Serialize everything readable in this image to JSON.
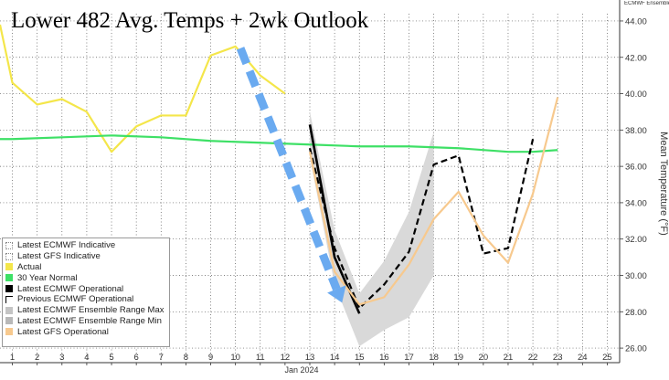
{
  "chart_data": {
    "type": "line",
    "title": "Lower 482 Avg. Temps + 2wk Outlook",
    "ylabel": "Mean Temperature (°F)",
    "xlabel_sub": "Jan 2024",
    "top_right_cut_label": "ECMWF Ensemble Range",
    "x_ticks": [
      "1",
      "2",
      "3",
      "4",
      "5",
      "6",
      "7",
      "8",
      "9",
      "10",
      "11",
      "12",
      "13",
      "14",
      "15",
      "16",
      "17",
      "18",
      "19",
      "20",
      "21",
      "22",
      "23",
      "24",
      "25"
    ],
    "y_ticks": [
      "26.00",
      "28.00",
      "30.00",
      "32.00",
      "34.00",
      "36.00",
      "38.00",
      "40.00",
      "42.00",
      "44.00"
    ],
    "xlim": [
      0.5,
      25.5
    ],
    "ylim": [
      25.2,
      44.4
    ],
    "grid": true,
    "legend_position": "bottom-left",
    "legend": [
      {
        "label": "Latest ECMWF Indicative",
        "style": "dotted",
        "color": "#ffffff"
      },
      {
        "label": "Latest GFS Indicative",
        "style": "dotted",
        "color": "#ffffff"
      },
      {
        "label": "Actual",
        "style": "solid",
        "color": "#f4e64a"
      },
      {
        "label": "30 Year Normal",
        "style": "solid",
        "color": "#3ee066"
      },
      {
        "label": "Latest ECMWF Operational",
        "style": "solid",
        "color": "#000000"
      },
      {
        "label": "Previous ECMWF Operational",
        "style": "dashed",
        "color": "#000000"
      },
      {
        "label": "Latest ECMWF Ensemble Range Max",
        "style": "solid",
        "color": "#c4c4c4"
      },
      {
        "label": "Latest ECMWF Ensemble Range Min",
        "style": "solid",
        "color": "#b8b8b8"
      },
      {
        "label": "Latest GFS Operational",
        "style": "solid",
        "color": "#f7c98e"
      }
    ],
    "series": [
      {
        "name": "Actual",
        "color": "#f4e64a",
        "x": [
          0.5,
          1,
          2,
          3,
          4,
          5,
          6,
          7,
          8,
          9,
          10,
          11,
          12
        ],
        "y": [
          43.8,
          40.6,
          39.4,
          39.7,
          39.0,
          36.8,
          38.2,
          38.8,
          38.8,
          42.1,
          42.6,
          41.0,
          40.0
        ]
      },
      {
        "name": "30 Year Normal",
        "color": "#3ee066",
        "x": [
          0.5,
          1,
          3,
          5,
          7,
          9,
          11,
          13,
          15,
          17,
          19,
          21,
          22,
          23
        ],
        "y": [
          37.5,
          37.5,
          37.6,
          37.7,
          37.6,
          37.4,
          37.3,
          37.2,
          37.1,
          37.1,
          37.0,
          36.8,
          36.8,
          36.9
        ]
      },
      {
        "name": "Latest ECMWF Operational",
        "color": "#000000",
        "x": [
          13,
          14,
          15
        ],
        "y": [
          38.3,
          31.0,
          27.9
        ]
      },
      {
        "name": "Previous ECMWF Operational",
        "color": "#000000",
        "dashed": true,
        "x": [
          13,
          14,
          15,
          16,
          17,
          18,
          19,
          20,
          21,
          22
        ],
        "y": [
          37.0,
          31.5,
          28.2,
          29.5,
          31.3,
          36.1,
          36.6,
          31.2,
          31.5,
          37.5
        ]
      },
      {
        "name": "Latest GFS Operational",
        "color": "#f7c98e",
        "x": [
          13,
          14,
          15,
          16,
          17,
          18,
          19,
          20,
          21,
          22,
          23
        ],
        "y": [
          36.8,
          30.2,
          28.4,
          28.8,
          30.6,
          33.1,
          34.6,
          32.2,
          30.7,
          34.5,
          39.8
        ]
      }
    ],
    "ensemble_range": {
      "name": "Latest ECMWF Ensemble Range",
      "color": "#d9d9d9",
      "x": [
        13,
        14,
        15,
        16,
        17,
        18
      ],
      "max": [
        39.0,
        32.5,
        29.0,
        30.8,
        33.5,
        37.9
      ],
      "min": [
        36.5,
        29.5,
        26.1,
        27.0,
        27.7,
        30.0
      ]
    },
    "annotation_arrow": {
      "color": "#6aaaf0",
      "from": [
        10.2,
        42.5
      ],
      "to": [
        14.3,
        28.5
      ],
      "style": "dashed"
    }
  }
}
